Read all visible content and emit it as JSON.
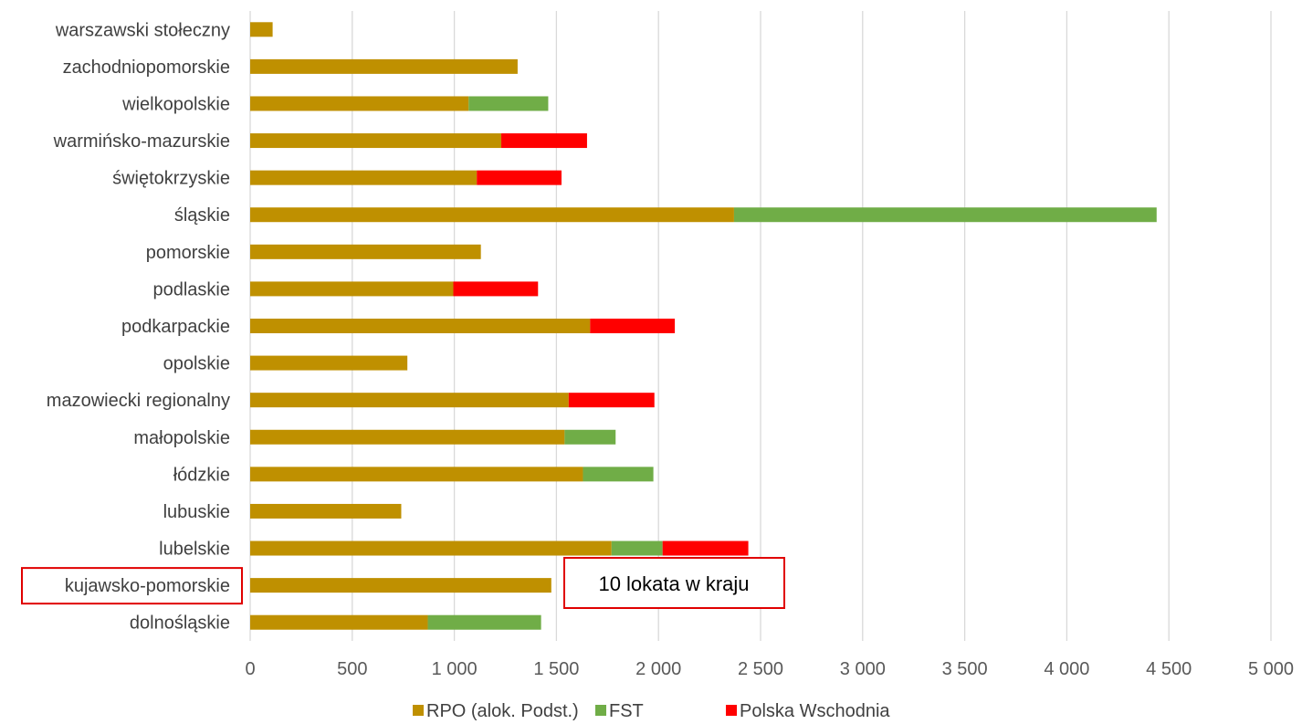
{
  "chart_data": {
    "type": "bar",
    "orientation": "horizontal",
    "stacked": true,
    "categories": [
      "dolnośląskie",
      "kujawsko-pomorskie",
      "lubelskie",
      "lubuskie",
      "łódzkie",
      "małopolskie",
      "mazowiecki regionalny",
      "opolskie",
      "podkarpackie",
      "podlaskie",
      "pomorskie",
      "śląskie",
      "świętokrzyskie",
      "warmińsko-mazurskie",
      "wielkopolskie",
      "zachodniopomorskie",
      "warszawski stołeczny"
    ],
    "series": [
      {
        "name": "RPO (alok. Podst.)",
        "color": "#BF9000",
        "values": [
          870,
          1475,
          1770,
          740,
          1630,
          1540,
          1560,
          770,
          1665,
          995,
          1130,
          2370,
          1110,
          1230,
          1070,
          1310,
          110
        ]
      },
      {
        "name": "FST",
        "color": "#70AD47",
        "values": [
          555,
          0,
          250,
          0,
          345,
          250,
          0,
          0,
          0,
          0,
          0,
          2070,
          0,
          0,
          390,
          0,
          0
        ]
      },
      {
        "name": "Polska Wschodnia",
        "color": "#FF0000",
        "values": [
          0,
          0,
          420,
          0,
          0,
          0,
          420,
          0,
          415,
          415,
          0,
          0,
          415,
          420,
          0,
          0,
          0
        ]
      }
    ],
    "xlim": [
      0,
      5000
    ],
    "xticks": [
      0,
      500,
      1000,
      1500,
      2000,
      2500,
      3000,
      3500,
      4000,
      4500,
      5000
    ],
    "xtick_labels": [
      "0",
      "500",
      "1 000",
      "1 500",
      "2 000",
      "2 500",
      "3 000",
      "3 500",
      "4 000",
      "4 500",
      "5 000"
    ],
    "grid": "vertical",
    "legend_position": "bottom",
    "highlighted_category": "kujawsko-pomorskie",
    "annotation": "10 lokata w kraju",
    "title": "",
    "xlabel": "",
    "ylabel": ""
  },
  "colors": {
    "grid": "#D9D9D9",
    "highlight_box": "#E00000"
  }
}
